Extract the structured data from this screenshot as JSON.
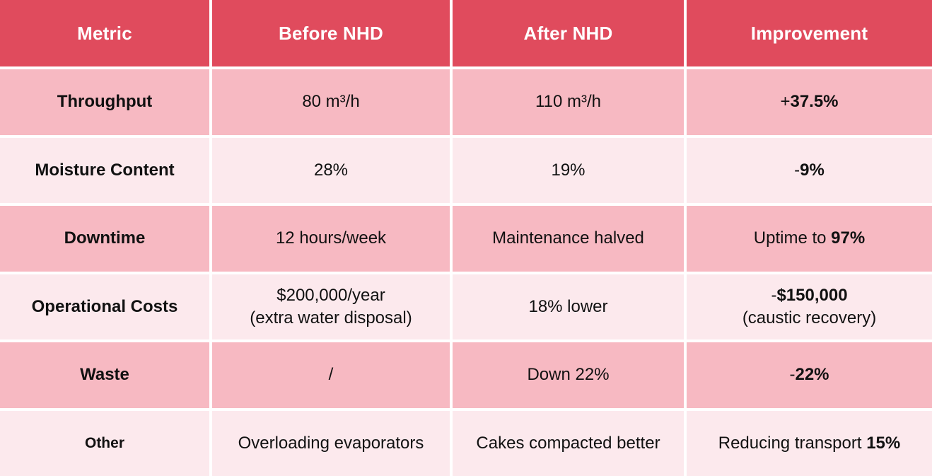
{
  "table": {
    "columns": [
      {
        "label": "Metric"
      },
      {
        "label": "Before NHD"
      },
      {
        "label": "After NHD"
      },
      {
        "label": "Improvement"
      }
    ],
    "rows": [
      {
        "metric": "Throughput",
        "before": [
          [
            {
              "t": "80 m³/h"
            }
          ]
        ],
        "after": [
          [
            {
              "t": "110 m³/h"
            }
          ]
        ],
        "improvement": [
          [
            {
              "t": "+"
            },
            {
              "t": "37.5%",
              "b": true
            }
          ]
        ]
      },
      {
        "metric": "Moisture Content",
        "before": [
          [
            {
              "t": "28%"
            }
          ]
        ],
        "after": [
          [
            {
              "t": "19%"
            }
          ]
        ],
        "improvement": [
          [
            {
              "t": "-"
            },
            {
              "t": "9%",
              "b": true
            }
          ]
        ]
      },
      {
        "metric": "Downtime",
        "before": [
          [
            {
              "t": "12 hours/week"
            }
          ]
        ],
        "after": [
          [
            {
              "t": "Maintenance halved"
            }
          ]
        ],
        "improvement": [
          [
            {
              "t": "Uptime to "
            },
            {
              "t": "97%",
              "b": true
            }
          ]
        ]
      },
      {
        "metric": "Operational Costs",
        "before": [
          [
            {
              "t": "$200,000/year"
            }
          ],
          [
            {
              "t": "(extra water disposal)"
            }
          ]
        ],
        "after": [
          [
            {
              "t": "18% lower"
            }
          ]
        ],
        "improvement": [
          [
            {
              "t": "-"
            },
            {
              "t": "$150,000",
              "b": true
            }
          ],
          [
            {
              "t": "(caustic recovery)"
            }
          ]
        ]
      },
      {
        "metric": "Waste",
        "before": [
          [
            {
              "t": "/"
            }
          ]
        ],
        "after": [
          [
            {
              "t": "Down 22%"
            }
          ]
        ],
        "improvement": [
          [
            {
              "t": "-"
            },
            {
              "t": "22%",
              "b": true
            }
          ]
        ]
      },
      {
        "metric": "Other",
        "metric_small": true,
        "before": [
          [
            {
              "t": "Overloading evaporators"
            }
          ]
        ],
        "after": [
          [
            {
              "t": "Cakes compacted better"
            }
          ]
        ],
        "improvement": [
          [
            {
              "t": "Reducing transport "
            },
            {
              "t": "15%",
              "b": true
            }
          ]
        ]
      }
    ]
  },
  "colors": {
    "header_bg": "#E04B5D",
    "row_dark": "#F7B9C2",
    "row_light": "#FCE9ED",
    "header_text": "#FFFFFF",
    "body_text": "#111111"
  }
}
